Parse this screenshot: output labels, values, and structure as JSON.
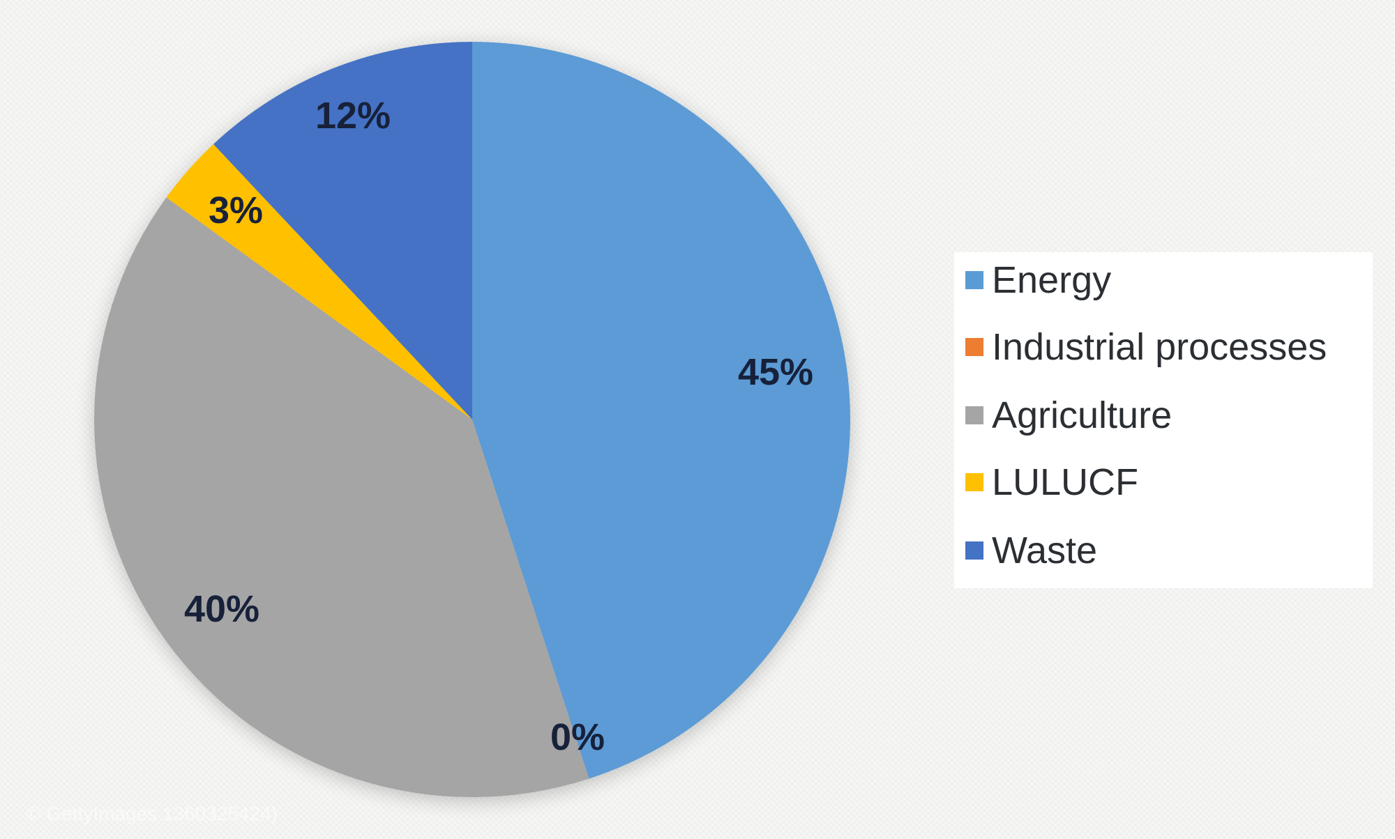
{
  "chart_data": {
    "type": "pie",
    "title": "",
    "categories": [
      "Energy",
      "Industrial processes",
      "Agriculture",
      "LULUCF",
      "Waste"
    ],
    "values": [
      45,
      0,
      40,
      3,
      12
    ],
    "value_labels": [
      "45%",
      "0%",
      "40%",
      "3%",
      "12%"
    ],
    "colors": [
      "#5b9bd5",
      "#ed7d31",
      "#a5a5a5",
      "#ffc000",
      "#4472c4"
    ],
    "start_angle": "12 o'clock",
    "direction": "clockwise",
    "legend": {
      "position": "right",
      "entries": [
        "Energy",
        "Industrial processes",
        "Agriculture",
        "LULUCF",
        "Waste"
      ]
    }
  },
  "watermark": {
    "text": "© GettyImages 1360325424)"
  }
}
